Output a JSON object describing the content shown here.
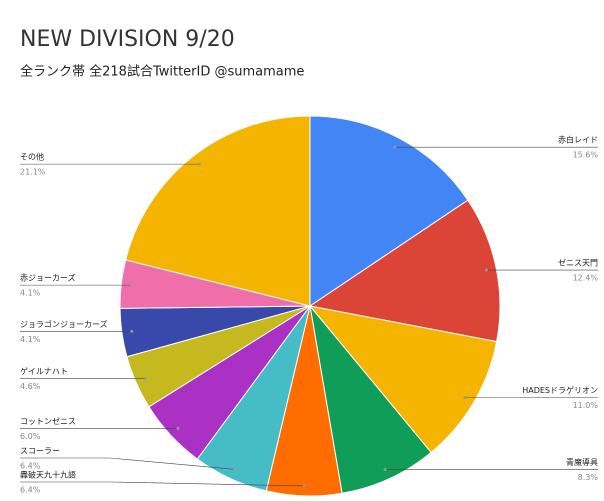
{
  "chart_data": {
    "type": "pie",
    "title": "NEW DIVISION 9/20",
    "subtitle": "全ランク帯 全218試合TwitterID @sumamame",
    "categories": [
      "赤白レイド",
      "ゼニス天門",
      "HADESドラゲリオン",
      "青魔導具",
      "轟破天九十九語",
      "スコーラー",
      "コットンゼニス",
      "ゲイルナハト",
      "ジョラゴンジョーカーズ",
      "赤ジョーカーズ",
      "その他"
    ],
    "values": [
      15.6,
      12.4,
      11.0,
      8.3,
      6.4,
      6.4,
      6.0,
      4.6,
      4.1,
      4.1,
      21.1
    ],
    "value_labels": [
      "15.6%",
      "12.4%",
      "11.0%",
      "8.3%",
      "6.4%",
      "6.4%",
      "6.0%",
      "4.6%",
      "4.1%",
      "4.1%",
      "21.1%"
    ],
    "colors": [
      "#4285f4",
      "#db4437",
      "#f4b400",
      "#0f9d58",
      "#ff6d00",
      "#46bdc6",
      "#ab30c4",
      "#c5b91f",
      "#3949ab",
      "#f06ea9",
      "#f4b400"
    ]
  }
}
